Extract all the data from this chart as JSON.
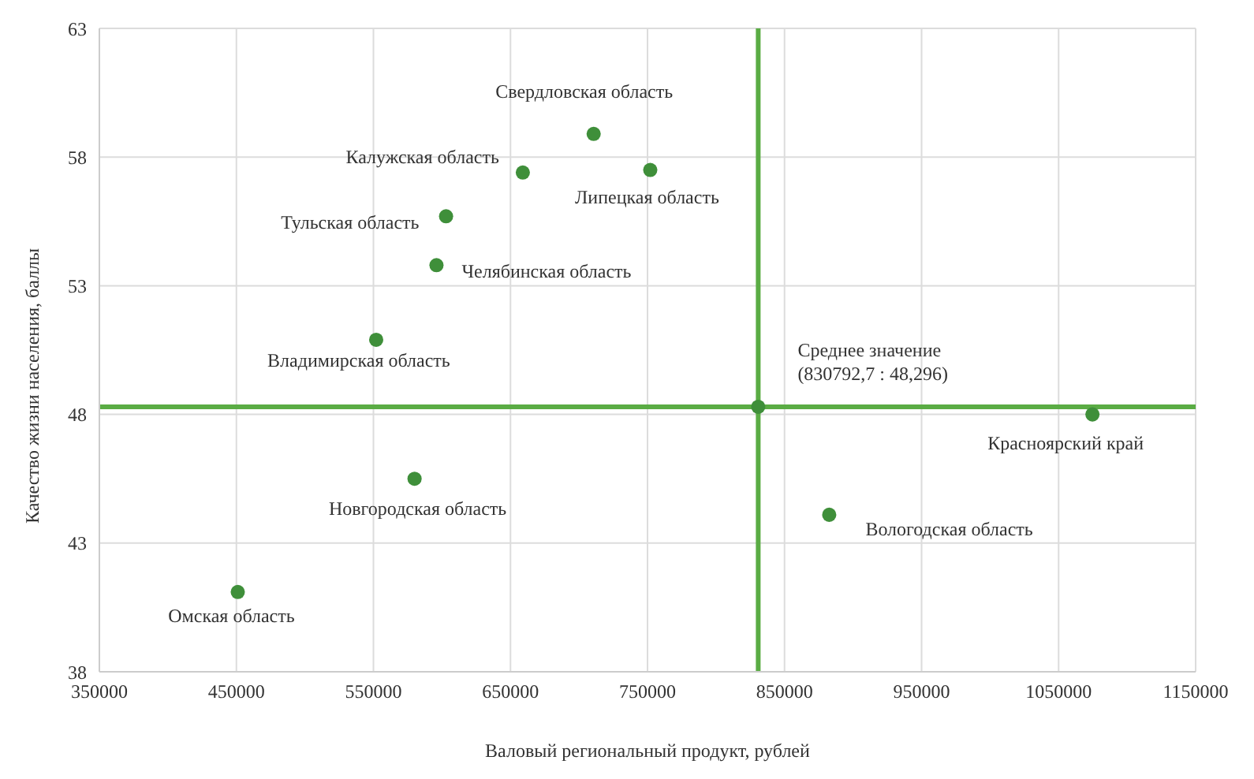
{
  "chart_data": {
    "type": "scatter",
    "xlabel": "Валовый региональный продукт, рублей",
    "ylabel": "Качество жизни населения, баллы",
    "x": [
      710700,
      659000,
      752000,
      603000,
      596000,
      552000,
      830792.7,
      1074700,
      580000,
      882600,
      451000
    ],
    "series": [
      {
        "color": "#3f8f3a",
        "values": [
          58.9,
          57.4,
          57.5,
          55.7,
          53.8,
          50.9,
          48.296,
          48.0,
          45.5,
          44.1,
          41.1
        ]
      }
    ],
    "xlim": [
      350000,
      1150000
    ],
    "xticks": [
      350000,
      450000,
      550000,
      650000,
      750000,
      850000,
      950000,
      1050000,
      1150000
    ],
    "ylim": [
      38,
      63
    ],
    "yticks": [
      38,
      43,
      48,
      53,
      58,
      63
    ],
    "grid": true,
    "marker": "circle",
    "legend": false,
    "ref_lines": [
      {
        "axis": "x",
        "value": 830792.7,
        "color": "#5aac44"
      },
      {
        "axis": "y",
        "value": 48.296,
        "color": "#5aac44"
      }
    ],
    "annotations": [
      {
        "text": "Свердловская область",
        "x": 710700,
        "y": 58.9
      },
      {
        "text": "Калужская область",
        "x": 659000,
        "y": 57.4
      },
      {
        "text": "Липецкая область",
        "x": 752000,
        "y": 57.5
      },
      {
        "text": "Тульская область",
        "x": 603000,
        "y": 55.7
      },
      {
        "text": "Челябинская область",
        "x": 596000,
        "y": 53.8
      },
      {
        "text": "Владимирская область",
        "x": 552000,
        "y": 50.9
      },
      {
        "text": "Среднее значение\n(830792,7 : 48,296)",
        "x": 830792.7,
        "y": 48.296
      },
      {
        "text": "Красноярский край",
        "x": 1074700,
        "y": 48.0
      },
      {
        "text": "Новгородская область",
        "x": 580000,
        "y": 45.5
      },
      {
        "text": "Вологодская область",
        "x": 882600,
        "y": 44.1
      },
      {
        "text": "Омская область",
        "x": 451000,
        "y": 41.1
      }
    ]
  }
}
